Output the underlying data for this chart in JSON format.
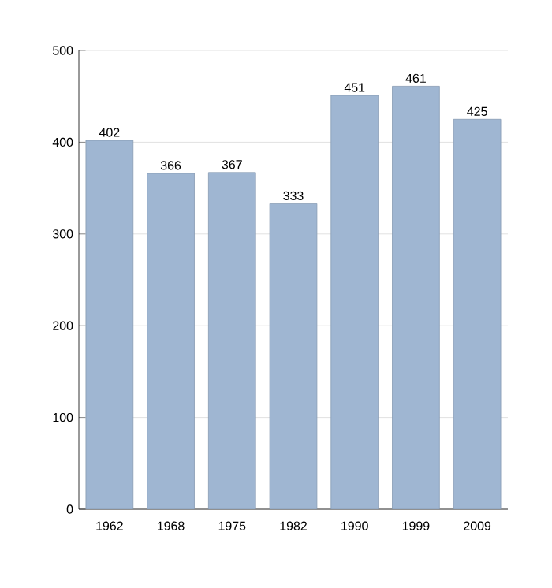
{
  "chart_data": {
    "type": "bar",
    "categories": [
      "1962",
      "1968",
      "1975",
      "1982",
      "1990",
      "1999",
      "2009"
    ],
    "values": [
      402,
      366,
      367,
      333,
      451,
      461,
      425
    ],
    "color": "#9fb6d2",
    "ylim": [
      0,
      500
    ],
    "yticks": [
      0,
      100,
      200,
      300,
      400,
      500
    ],
    "grid": "y",
    "data_labels": true
  }
}
